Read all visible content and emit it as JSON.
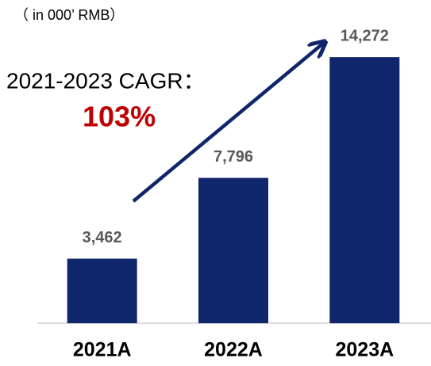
{
  "chart_data": {
    "type": "bar",
    "subtitle": "（ in 000’ RMB）",
    "annotations": [
      "2021-2023 CAGR：",
      "103%"
    ],
    "categories": [
      "2021A",
      "2022A",
      "2023A"
    ],
    "values": [
      3462,
      7796,
      14272
    ],
    "value_labels": [
      "3,462",
      "7,796",
      "14,272"
    ],
    "color": "#10266b",
    "ylim": [
      0,
      15000
    ]
  }
}
